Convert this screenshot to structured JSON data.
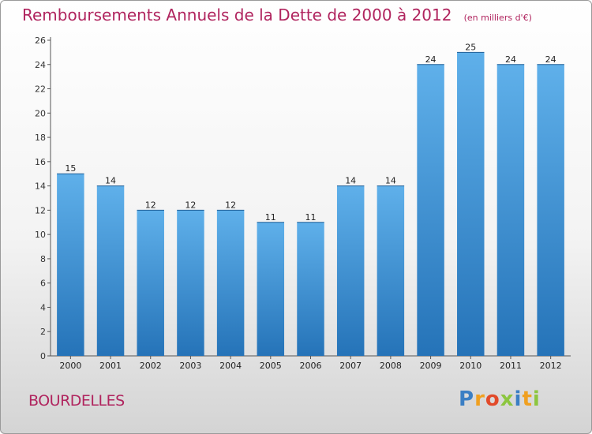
{
  "chart_data": {
    "type": "bar",
    "title": "Remboursements Annuels de la Dette de 2000 à 2012",
    "unit": "(en milliers d'€)",
    "categories": [
      "2000",
      "2001",
      "2002",
      "2003",
      "2004",
      "2005",
      "2006",
      "2007",
      "2008",
      "2009",
      "2010",
      "2011",
      "2012"
    ],
    "values": [
      15,
      14,
      12,
      12,
      12,
      11,
      11,
      14,
      14,
      24,
      25,
      24,
      24
    ],
    "ylim": [
      0,
      26
    ],
    "yticks": [
      0,
      2,
      4,
      6,
      8,
      10,
      12,
      14,
      16,
      18,
      20,
      22,
      24,
      26
    ],
    "xlabel": "",
    "ylabel": "",
    "grid": false,
    "bar_color": "#3a8fd4"
  },
  "footer": {
    "city": "BOURDELLES",
    "brand_letters": [
      {
        "ch": "P",
        "color": "#3b7fc4"
      },
      {
        "ch": "r",
        "color": "#f0a020"
      },
      {
        "ch": "o",
        "color": "#e24a2a"
      },
      {
        "ch": "x",
        "color": "#8cc63f"
      },
      {
        "ch": "i",
        "color": "#3b7fc4"
      },
      {
        "ch": "t",
        "color": "#f0a020"
      },
      {
        "ch": "i",
        "color": "#8cc63f"
      }
    ]
  }
}
